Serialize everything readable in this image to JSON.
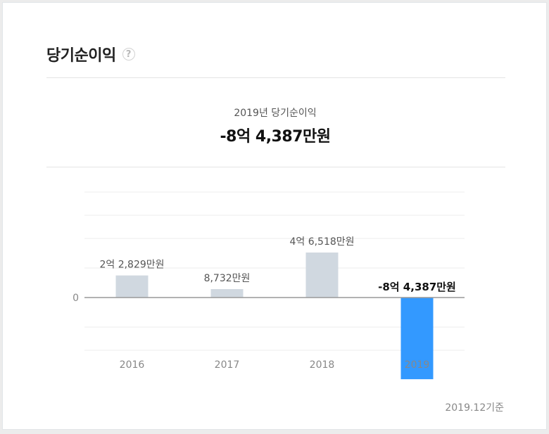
{
  "header": {
    "title": "당기순이익",
    "help_icon": "question-circle-icon"
  },
  "summary": {
    "label": "2019년 당기순이익",
    "value": "-8억 4,387만원"
  },
  "footnote": "2019.12기준",
  "colors": {
    "positive_bar": "#d0d8e0",
    "negative_bar": "#3399ff",
    "zero_line": "#999999",
    "grid": "#ececec"
  },
  "chart_data": {
    "type": "bar",
    "categories": [
      "2016",
      "2017",
      "2018",
      "2019"
    ],
    "values": [
      22829,
      8732,
      46518,
      -84387
    ],
    "value_unit": "만원",
    "data_labels": [
      "2억 2,829만원",
      "8,732만원",
      "4억 6,518만원",
      "-8억 4,387만원"
    ],
    "highlight_index": 3,
    "y_tick_labels": [
      "0"
    ],
    "ylim": [
      -115000,
      75000
    ],
    "grid": true
  }
}
